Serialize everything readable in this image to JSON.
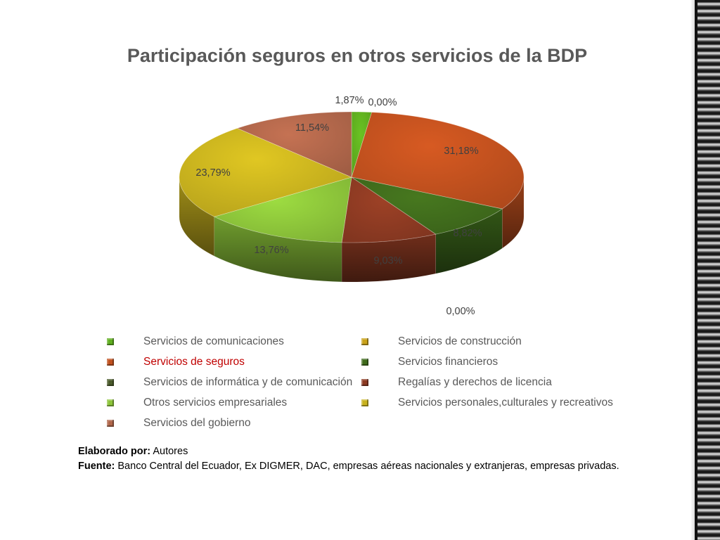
{
  "title": "Participación seguros en otros servicios de la BDP",
  "chart_data": {
    "type": "pie",
    "title": "Participación seguros en otros servicios de la BDP",
    "categories": [
      "Servicios de comunicaciones",
      "Servicios de construcción",
      "Servicios de seguros",
      "Servicios financieros",
      "Servicios de informática y de comunicación",
      "Regalías y derechos de licencia",
      "Otros servicios empresariales",
      "Servicios personales,culturales y recreativos",
      "Servicios del gobierno"
    ],
    "values": [
      1.87,
      0.0,
      31.18,
      8.82,
      0.0,
      9.03,
      13.76,
      23.79,
      11.54
    ],
    "data_labels": [
      "1,87%",
      "0,00%",
      "31,18%",
      "8,82%",
      "0,00%",
      "9,03%",
      "13,76%",
      "23,79%",
      "11,54%"
    ],
    "colors": [
      "#5fae1f",
      "#c9a21a",
      "#c0501e",
      "#3f6b1c",
      "#4a5a2a",
      "#8c3a22",
      "#8cc43a",
      "#c8b21e",
      "#b0664a"
    ],
    "highlighted": "Servicios de seguros",
    "highlight_color": "#c00000",
    "legend_position": "bottom",
    "style": "3d"
  },
  "legend": [
    {
      "label": "Servicios de comunicaciones",
      "color": "#5fae1f"
    },
    {
      "label": "Servicios de construcción",
      "color": "#c9a21a"
    },
    {
      "label": "Servicios de seguros",
      "color": "#c0501e"
    },
    {
      "label": "Servicios financieros",
      "color": "#3f6b1c"
    },
    {
      "label": "Servicios de informática y de comunicación",
      "color": "#4a5a2a"
    },
    {
      "label": "Regalías y derechos de licencia",
      "color": "#8c3a22"
    },
    {
      "label": "Otros servicios empresariales",
      "color": "#8cc43a"
    },
    {
      "label": "Servicios personales,culturales y recreativos",
      "color": "#c8b21e"
    },
    {
      "label": "Servicios del gobierno",
      "color": "#b0664a"
    }
  ],
  "notes": {
    "elaborado_label": "Elaborado por:",
    "elaborado_value": " Autores",
    "fuente_label": "Fuente:",
    "fuente_value": " Banco Central del Ecuador, Ex DIGMER, DAC, empresas aéreas nacionales y extranjeras, empresas privadas."
  }
}
